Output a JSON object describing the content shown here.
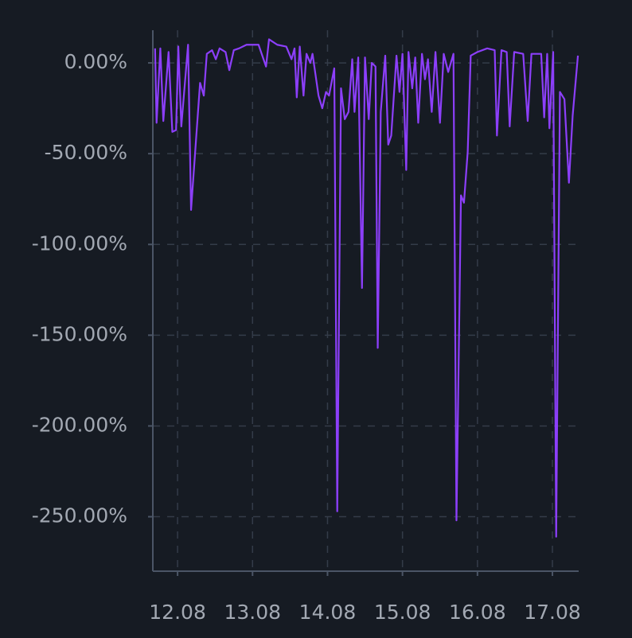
{
  "chart_data": {
    "type": "line",
    "x": [
      11.7,
      11.72,
      11.77,
      11.81,
      11.88,
      11.93,
      11.98,
      12.01,
      12.05,
      12.14,
      12.18,
      12.3,
      12.35,
      12.39,
      12.46,
      12.51,
      12.56,
      12.64,
      12.69,
      12.75,
      12.82,
      12.92,
      13.08,
      13.18,
      13.22,
      13.33,
      13.45,
      13.52,
      13.56,
      13.59,
      13.63,
      13.68,
      13.72,
      13.77,
      13.8,
      13.88,
      13.93,
      13.98,
      14.02,
      14.09,
      14.13,
      14.18,
      14.23,
      14.28,
      14.33,
      14.36,
      14.41,
      14.46,
      14.5,
      14.55,
      14.59,
      14.64,
      14.67,
      14.71,
      14.77,
      14.81,
      14.85,
      14.92,
      14.96,
      15.0,
      15.05,
      15.08,
      15.13,
      15.17,
      15.21,
      15.26,
      15.3,
      15.34,
      15.39,
      15.44,
      15.5,
      15.55,
      15.61,
      15.68,
      15.72,
      15.78,
      15.82,
      15.87,
      15.91,
      16.0,
      16.13,
      16.23,
      16.26,
      16.32,
      16.39,
      16.43,
      16.49,
      16.61,
      16.67,
      16.72,
      16.85,
      16.89,
      16.93,
      16.96,
      17.01,
      17.05,
      17.1,
      17.16,
      17.22,
      17.27,
      17.34
    ],
    "series": [
      {
        "color": "#8c3ffa",
        "values": [
          8,
          -33,
          8,
          -32,
          6,
          -38,
          -37,
          9,
          -35,
          10,
          -81,
          -11,
          -18,
          5,
          7,
          2,
          8,
          6,
          -4,
          7,
          8,
          10,
          10,
          -2,
          13,
          10,
          9,
          2,
          8,
          -19,
          9,
          -18,
          5,
          0,
          5,
          -18,
          -25,
          -16,
          -18,
          -3,
          -247,
          -14,
          -31,
          -27,
          2,
          -27,
          3,
          -124,
          3,
          -31,
          0,
          -2,
          -157,
          -27,
          4,
          -45,
          -40,
          4,
          -16,
          5,
          -59,
          6,
          -14,
          3,
          -33,
          5,
          -9,
          2,
          -27,
          6,
          -33,
          5,
          -5,
          5,
          -252,
          -73,
          -77,
          -49,
          4,
          6,
          8,
          7,
          -40,
          7,
          6,
          -35,
          6,
          5,
          -32,
          5,
          5,
          -30,
          5,
          -36,
          6,
          -261,
          -16,
          -20,
          -66,
          -29,
          4
        ]
      }
    ],
    "xlim": [
      11.67,
      17.35
    ],
    "xticks": [
      {
        "value": 12,
        "label": "12.08"
      },
      {
        "value": 13,
        "label": "13.08"
      },
      {
        "value": 14,
        "label": "14.08"
      },
      {
        "value": 15,
        "label": "15.08"
      },
      {
        "value": 16,
        "label": "16.08"
      },
      {
        "value": 17,
        "label": "17.08"
      }
    ],
    "ylim": [
      -280,
      18
    ],
    "yticks": [
      {
        "value": 0,
        "label": "0.00%"
      },
      {
        "value": -50,
        "label": "-50.00%"
      },
      {
        "value": -100,
        "label": "-100.00%"
      },
      {
        "value": -150,
        "label": "-150.00%"
      },
      {
        "value": -200,
        "label": "-200.00%"
      },
      {
        "value": -250,
        "label": "-250.00%"
      }
    ],
    "grid": true
  }
}
